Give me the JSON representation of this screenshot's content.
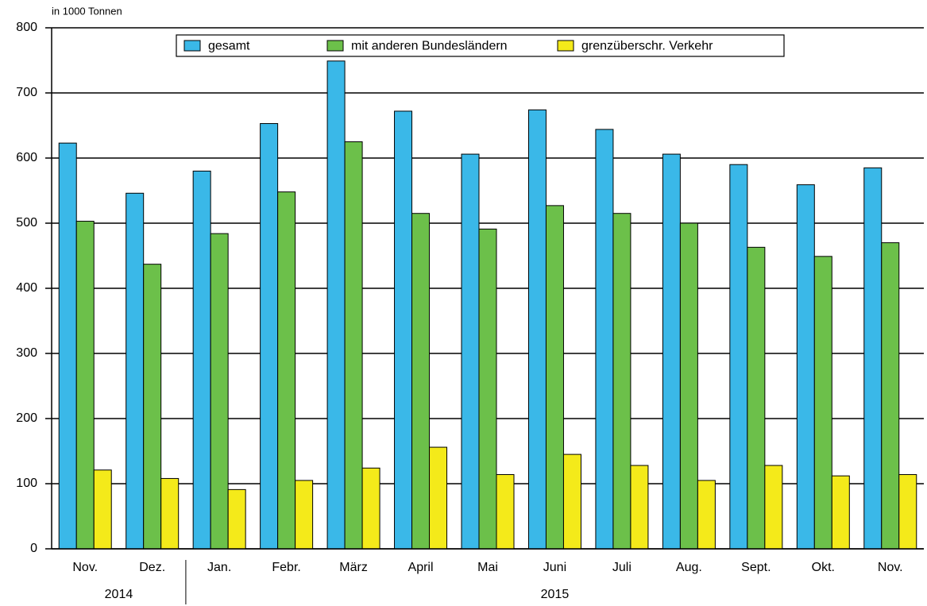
{
  "chart_data": {
    "type": "bar",
    "y_label": "in 1000 Tonnen",
    "categories": [
      "Nov.",
      "Dez.",
      "Jan.",
      "Febr.",
      "März",
      "April",
      "Mai",
      "Juni",
      "Juli",
      "Aug.",
      "Sept.",
      "Okt.",
      "Nov."
    ],
    "category_years": [
      "2014",
      "2014",
      "2015",
      "2015",
      "2015",
      "2015",
      "2015",
      "2015",
      "2015",
      "2015",
      "2015",
      "2015",
      "2015"
    ],
    "series": [
      {
        "name": "gesamt",
        "color": "#3ab8e8",
        "values": [
          623,
          546,
          580,
          653,
          749,
          672,
          606,
          674,
          644,
          606,
          590,
          559,
          585
        ]
      },
      {
        "name": "mit anderen Bundesländern",
        "color": "#6cc04a",
        "values": [
          503,
          437,
          484,
          548,
          625,
          515,
          491,
          527,
          515,
          500,
          463,
          449,
          470
        ]
      },
      {
        "name": "grenzüberschr. Verkehr",
        "color": "#f4ea1a",
        "values": [
          121,
          108,
          91,
          105,
          124,
          156,
          114,
          145,
          128,
          105,
          128,
          112,
          114
        ]
      }
    ],
    "ylim": [
      0,
      800
    ],
    "yticks": [
      0,
      100,
      200,
      300,
      400,
      500,
      600,
      700,
      800
    ],
    "grid": true,
    "legend": "top"
  }
}
